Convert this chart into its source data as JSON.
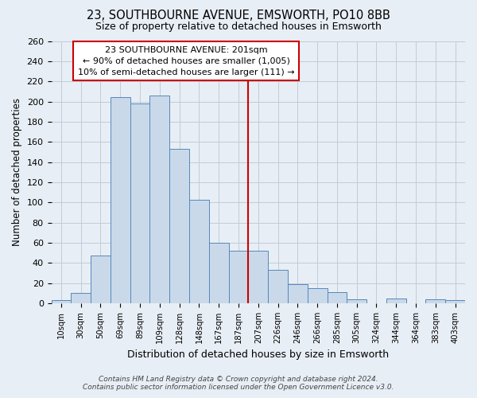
{
  "title": "23, SOUTHBOURNE AVENUE, EMSWORTH, PO10 8BB",
  "subtitle": "Size of property relative to detached houses in Emsworth",
  "xlabel": "Distribution of detached houses by size in Emsworth",
  "ylabel": "Number of detached properties",
  "bar_labels": [
    "10sqm",
    "30sqm",
    "50sqm",
    "69sqm",
    "89sqm",
    "109sqm",
    "128sqm",
    "148sqm",
    "167sqm",
    "187sqm",
    "207sqm",
    "226sqm",
    "246sqm",
    "266sqm",
    "285sqm",
    "305sqm",
    "324sqm",
    "344sqm",
    "364sqm",
    "383sqm",
    "403sqm"
  ],
  "bar_values": [
    3,
    10,
    47,
    204,
    198,
    206,
    153,
    103,
    60,
    52,
    52,
    33,
    19,
    15,
    11,
    4,
    0,
    5,
    0,
    4,
    3
  ],
  "bar_color": "#c9d9ea",
  "bar_edge_color": "#5588bb",
  "vline_color": "#cc0000",
  "annotation_title": "23 SOUTHBOURNE AVENUE: 201sqm",
  "annotation_line1": "← 90% of detached houses are smaller (1,005)",
  "annotation_line2": "10% of semi-detached houses are larger (111) →",
  "ylim": [
    0,
    260
  ],
  "yticks": [
    0,
    20,
    40,
    60,
    80,
    100,
    120,
    140,
    160,
    180,
    200,
    220,
    240,
    260
  ],
  "footnote1": "Contains HM Land Registry data © Crown copyright and database right 2024.",
  "footnote2": "Contains public sector information licensed under the Open Government Licence v3.0.",
  "bg_color": "#e8eef5",
  "plot_bg_color": "#e8eef5",
  "grid_color": "#c0ccd8"
}
